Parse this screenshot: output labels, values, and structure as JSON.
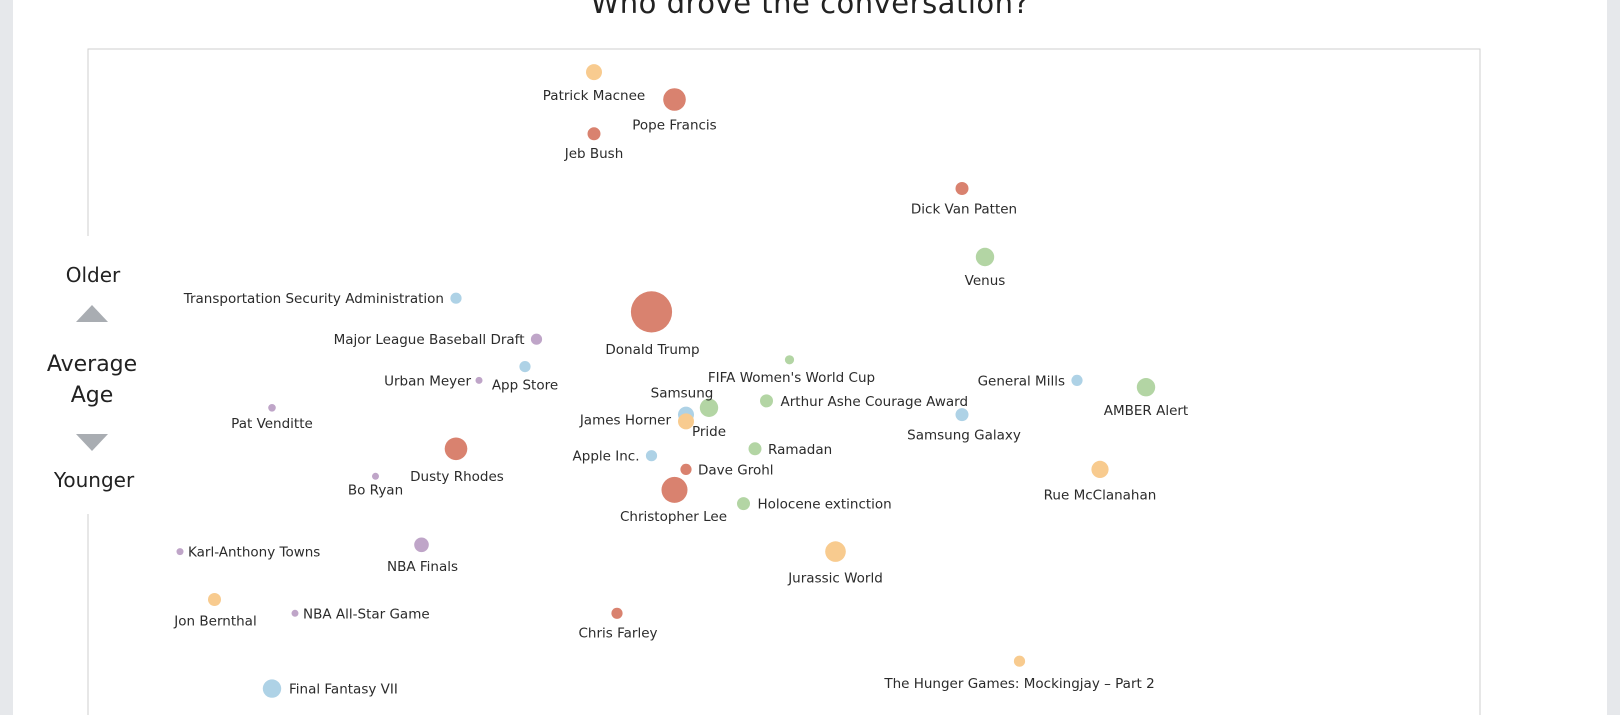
{
  "title": "Who drove the conversation?",
  "colors": {
    "red": "#d9826f",
    "blue": "#aed2e6",
    "green": "#b3d5a4",
    "orange": "#f8cb8f",
    "purple": "#bfa5c8",
    "frame": "#cfcfcf",
    "triangle": "#a9adb2"
  },
  "y_axis": {
    "top": "Older",
    "middle_1": "Average",
    "middle_2": "Age",
    "bottom": "Younger"
  },
  "chart_data": {
    "type": "scatter",
    "title": "Who drove the conversation?",
    "xlabel": "",
    "ylabel": "Average Age",
    "points": [
      {
        "label": "Patrick Macnee",
        "x": 0.4,
        "y": 0.94,
        "size": 3,
        "color": "orange"
      },
      {
        "label": "Pope Francis",
        "x": 0.47,
        "y": 0.9,
        "size": 6,
        "color": "red"
      },
      {
        "label": "Jeb Bush",
        "x": 0.4,
        "y": 0.85,
        "size": 2,
        "color": "red"
      },
      {
        "label": "Dick Van Patten",
        "x": 0.72,
        "y": 0.77,
        "size": 2,
        "color": "red"
      },
      {
        "label": "Venus",
        "x": 0.74,
        "y": 0.67,
        "size": 4,
        "color": "green"
      },
      {
        "label": "Transportation Security Administration",
        "x": 0.28,
        "y": 0.61,
        "size": 1.5,
        "color": "blue"
      },
      {
        "label": "Donald Trump",
        "x": 0.45,
        "y": 0.59,
        "size": 20,
        "color": "red"
      },
      {
        "label": "Major League Baseball Draft",
        "x": 0.35,
        "y": 0.55,
        "size": 1.5,
        "color": "purple"
      },
      {
        "label": "FIFA Women's World Cup",
        "x": 0.57,
        "y": 0.52,
        "size": 1,
        "color": "green"
      },
      {
        "label": "App Store",
        "x": 0.34,
        "y": 0.51,
        "size": 1.5,
        "color": "blue"
      },
      {
        "label": "Urban Meyer",
        "x": 0.3,
        "y": 0.49,
        "size": 0.5,
        "color": "purple"
      },
      {
        "label": "General Mills",
        "x": 0.82,
        "y": 0.49,
        "size": 1.5,
        "color": "blue"
      },
      {
        "label": "AMBER Alert",
        "x": 0.88,
        "y": 0.48,
        "size": 4,
        "color": "green"
      },
      {
        "label": "Pat Venditte",
        "x": 0.12,
        "y": 0.45,
        "size": 0.7,
        "color": "purple"
      },
      {
        "label": "Pride",
        "x": 0.5,
        "y": 0.45,
        "size": 4,
        "color": "green"
      },
      {
        "label": "Arthur Ashe Courage Award",
        "x": 0.55,
        "y": 0.46,
        "size": 2,
        "color": "green"
      },
      {
        "label": "Samsung",
        "x": 0.48,
        "y": 0.44,
        "size": 3,
        "color": "blue"
      },
      {
        "label": "James Horner",
        "x": 0.48,
        "y": 0.43,
        "size": 3,
        "color": "orange"
      },
      {
        "label": "Samsung Galaxy",
        "x": 0.72,
        "y": 0.44,
        "size": 2,
        "color": "blue"
      },
      {
        "label": "Dusty Rhodes",
        "x": 0.28,
        "y": 0.39,
        "size": 6,
        "color": "red"
      },
      {
        "label": "Apple Inc.",
        "x": 0.45,
        "y": 0.38,
        "size": 1.5,
        "color": "blue"
      },
      {
        "label": "Ramadan",
        "x": 0.54,
        "y": 0.39,
        "size": 2,
        "color": "green"
      },
      {
        "label": "Dave Grohl",
        "x": 0.48,
        "y": 0.36,
        "size": 1.5,
        "color": "red"
      },
      {
        "label": "Rue McClanahan",
        "x": 0.84,
        "y": 0.36,
        "size": 3.5,
        "color": "orange"
      },
      {
        "label": "Bo Ryan",
        "x": 0.21,
        "y": 0.35,
        "size": 0.5,
        "color": "purple"
      },
      {
        "label": "Christopher Lee",
        "x": 0.47,
        "y": 0.33,
        "size": 8,
        "color": "red"
      },
      {
        "label": "Holocene extinction",
        "x": 0.53,
        "y": 0.31,
        "size": 2,
        "color": "green"
      },
      {
        "label": "NBA Finals",
        "x": 0.25,
        "y": 0.25,
        "size": 2.5,
        "color": "purple"
      },
      {
        "label": "Karl-Anthony Towns",
        "x": 0.04,
        "y": 0.24,
        "size": 0.5,
        "color": "purple"
      },
      {
        "label": "Jurassic World",
        "x": 0.61,
        "y": 0.24,
        "size": 5,
        "color": "orange"
      },
      {
        "label": "Jon Bernthal",
        "x": 0.07,
        "y": 0.17,
        "size": 2,
        "color": "orange"
      },
      {
        "label": "NBA All-Star Game",
        "x": 0.14,
        "y": 0.15,
        "size": 0.5,
        "color": "purple"
      },
      {
        "label": "Chris Farley",
        "x": 0.42,
        "y": 0.15,
        "size": 1.5,
        "color": "red"
      },
      {
        "label": "The Hunger Games: Mockingjay – Part 2",
        "x": 0.77,
        "y": 0.08,
        "size": 1.5,
        "color": "orange"
      },
      {
        "label": "Final Fantasy VII",
        "x": 0.12,
        "y": 0.04,
        "size": 4,
        "color": "blue"
      }
    ]
  }
}
